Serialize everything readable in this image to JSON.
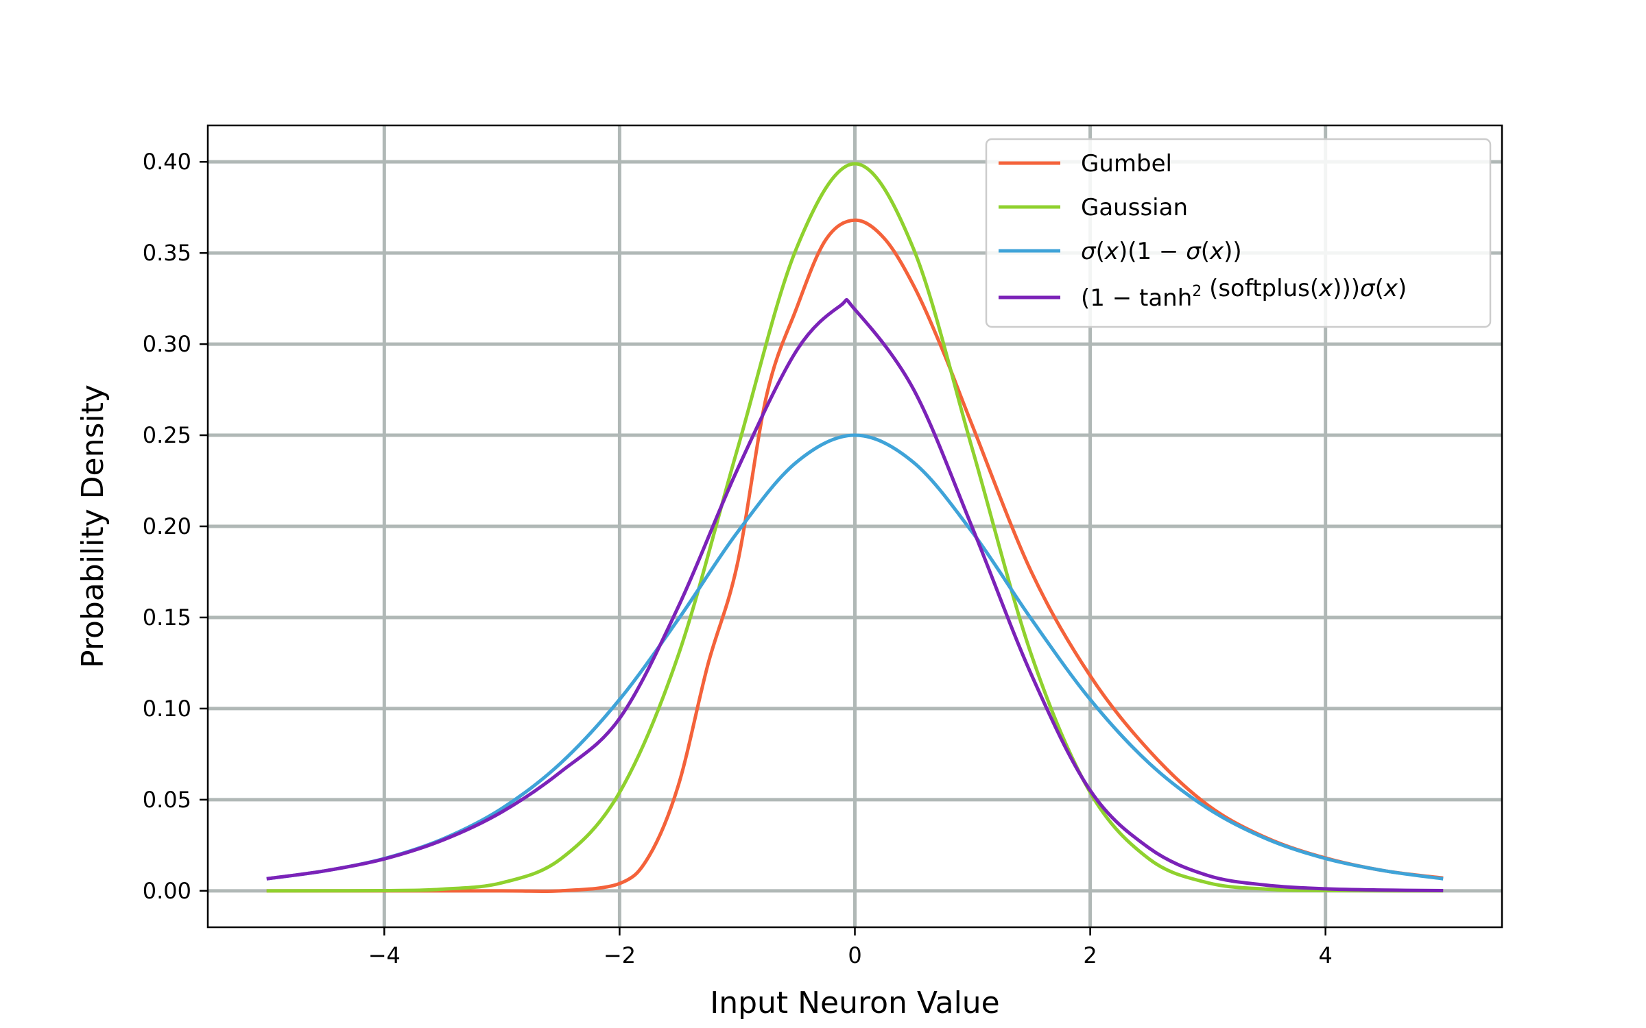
{
  "chart_data": {
    "type": "line",
    "title": "",
    "xlabel": "Input Neuron Value",
    "ylabel": "Probability Density",
    "xlim": [
      -5.5,
      5.5
    ],
    "ylim": [
      -0.02,
      0.42
    ],
    "x_range": [
      -5,
      5
    ],
    "x_ticks": [
      -4,
      -2,
      0,
      2,
      4
    ],
    "x_tick_labels": [
      "−4",
      "−2",
      "0",
      "2",
      "4"
    ],
    "y_ticks": [
      0.0,
      0.05,
      0.1,
      0.15,
      0.2,
      0.25,
      0.3,
      0.35,
      0.4
    ],
    "y_tick_labels": [
      "0.00",
      "0.05",
      "0.10",
      "0.15",
      "0.20",
      "0.25",
      "0.30",
      "0.35",
      "0.40"
    ],
    "grid": true,
    "legend_position": "top-right",
    "series": [
      {
        "name": "Gumbel",
        "color": "#f4623a",
        "x": [
          -5,
          -4,
          -3,
          -2.5,
          -2,
          -1.75,
          -1.5,
          -1.25,
          -1,
          -0.75,
          -0.5,
          -0.25,
          0,
          0.25,
          0.5,
          0.75,
          1,
          1.5,
          2,
          2.5,
          3,
          3.5,
          4,
          4.5,
          5
        ],
        "values": [
          0.0,
          0.0,
          0.0,
          0.0,
          0.004,
          0.019,
          0.058,
          0.124,
          0.179,
          0.272,
          0.319,
          0.357,
          0.368,
          0.358,
          0.332,
          0.296,
          0.255,
          0.175,
          0.118,
          0.077,
          0.047,
          0.029,
          0.018,
          0.011,
          0.007
        ]
      },
      {
        "name": "Gaussian",
        "color": "#8fd12e",
        "x": [
          -5,
          -4,
          -3.5,
          -3,
          -2.5,
          -2,
          -1.5,
          -1,
          -0.5,
          0,
          0.5,
          1,
          1.5,
          2,
          2.5,
          3,
          3.5,
          4,
          5
        ],
        "values": [
          0.0,
          0.0001,
          0.0009,
          0.0044,
          0.0175,
          0.054,
          0.1295,
          0.242,
          0.352,
          0.399,
          0.352,
          0.242,
          0.1295,
          0.054,
          0.0175,
          0.0044,
          0.0009,
          0.0001,
          0.0
        ]
      },
      {
        "name": "σ(x)(1 − σ(x))",
        "color": "#3fa3d8",
        "x": [
          -5,
          -4.5,
          -4,
          -3.5,
          -3,
          -2.5,
          -2,
          -1.5,
          -1,
          -0.5,
          0,
          0.5,
          1,
          1.5,
          2,
          2.5,
          3,
          3.5,
          4,
          4.5,
          5
        ],
        "values": [
          0.0066,
          0.011,
          0.0177,
          0.0285,
          0.0452,
          0.0701,
          0.105,
          0.1491,
          0.1966,
          0.235,
          0.25,
          0.235,
          0.1966,
          0.1491,
          0.105,
          0.0701,
          0.0452,
          0.0285,
          0.0177,
          0.011,
          0.0066
        ]
      },
      {
        "name": "(1 − tanh²(softplus(x)))σ(x)",
        "color": "#7b22b8",
        "x": [
          -5,
          -4.5,
          -4,
          -3.5,
          -3,
          -2.5,
          -2,
          -1.5,
          -1,
          -0.5,
          -0.125,
          0,
          0.5,
          1,
          1.5,
          2,
          2.5,
          3,
          3.5,
          4,
          4.5,
          5
        ],
        "values": [
          0.0066,
          0.011,
          0.0175,
          0.0279,
          0.0433,
          0.0653,
          0.0946,
          0.156,
          0.231,
          0.296,
          0.321,
          0.319,
          0.275,
          0.199,
          0.1186,
          0.0551,
          0.0235,
          0.0084,
          0.0031,
          0.0011,
          0.0004,
          0.0001
        ]
      }
    ]
  }
}
